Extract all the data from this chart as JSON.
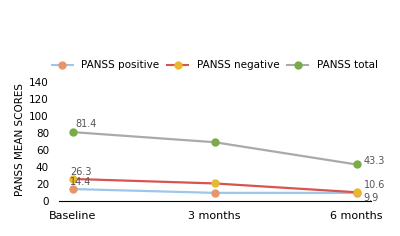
{
  "x_labels": [
    "Baseline",
    "3 months",
    "6 months"
  ],
  "series": [
    {
      "name": "PANSS positive",
      "values": [
        14.4,
        9.9,
        9.9
      ],
      "line_color": "#9ec6e8",
      "marker_color": "#e8956a",
      "marker": "o"
    },
    {
      "name": "PANSS negative",
      "values": [
        26.3,
        21.0,
        10.6
      ],
      "line_color": "#d9534f",
      "marker_color": "#e8b830",
      "marker": "o"
    },
    {
      "name": "PANSS total",
      "values": [
        81.4,
        69.5,
        43.3
      ],
      "line_color": "#aaaaaa",
      "marker_color": "#7aaa4a",
      "marker": "o"
    }
  ],
  "legend_colors": [
    "#9ec6e8",
    "#e8b830",
    "#7aaa4a"
  ],
  "legend_line_colors": [
    "#9ec6e8",
    "#d9534f",
    "#aaaaaa"
  ],
  "ylabel": "PANSS MEAN SCORES",
  "ylim": [
    0,
    145
  ],
  "yticks": [
    0,
    20,
    40,
    60,
    80,
    100,
    120,
    140
  ],
  "background_color": "#ffffff"
}
